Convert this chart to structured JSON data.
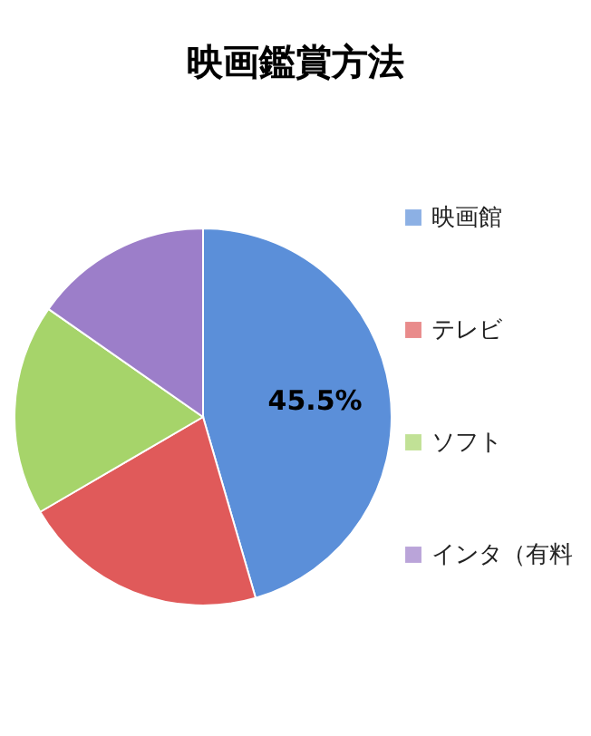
{
  "chart_data": {
    "type": "pie",
    "title": "映画鑑賞方法",
    "categories": [
      "映画館",
      "テレビ",
      "ソフト",
      "インタ（有料"
    ],
    "values": [
      45.5,
      21.1,
      18.1,
      15.3
    ],
    "colors": [
      "#5b8fd9",
      "#e05a5a",
      "#a6d46a",
      "#9c7ec9"
    ],
    "value_labels": [
      "45.5%",
      null,
      null,
      null
    ],
    "legend": "right"
  }
}
